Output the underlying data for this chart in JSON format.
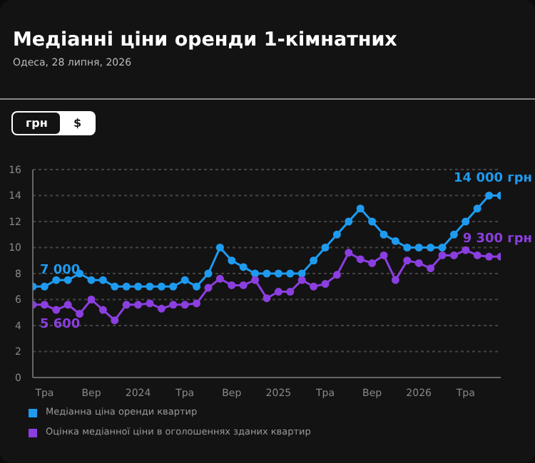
{
  "chart_data": {
    "type": "line",
    "title": "Медіанні ціни оренди 1-кімнатних",
    "subtitle": "Одеса, 28 липня, 2026",
    "annotations": [
      "грн",
      "$",
      {
        "text": "7 000",
        "y": 7.0
      },
      {
        "text": "5 600",
        "y": 5.6
      },
      {
        "text": "14 000 грн",
        "y": 14.0
      },
      {
        "text": "9 300 грн",
        "y": 9.3
      }
    ],
    "categories": [
      null,
      "Тра",
      null,
      null,
      null,
      "Вер",
      null,
      null,
      null,
      "2024",
      null,
      null,
      null,
      "Тра",
      null,
      null,
      null,
      "Вер",
      null,
      null,
      null,
      "2025",
      null,
      null,
      null,
      "Тра",
      null,
      null,
      null,
      "Вер",
      null,
      null,
      null,
      "2026",
      null,
      null,
      null,
      "Тра",
      null,
      null,
      null
    ],
    "series": [
      {
        "name": "Медіанна ціна оренди квартир",
        "color": "#1e9bf0",
        "values": [
          7.0,
          7.0,
          7.5,
          7.5,
          8.0,
          7.5,
          7.5,
          7.0,
          7.0,
          7.0,
          7.0,
          7.0,
          7.0,
          7.5,
          7.0,
          8.0,
          10.0,
          9.0,
          8.5,
          8.0,
          8.0,
          8.0,
          8.0,
          8.0,
          9.0,
          10.0,
          11.0,
          12.0,
          13.0,
          12.0,
          11.0,
          10.5,
          10.0,
          10.0,
          10.0,
          10.0,
          11.0,
          12.0,
          13.0,
          14.0,
          14.0
        ]
      },
      {
        "name": "Оцінка медіанної ціни в оголошеннях зданих квартир",
        "color": "#8b3fe0",
        "values": [
          5.6,
          5.6,
          5.2,
          5.6,
          4.9,
          6.0,
          5.2,
          4.4,
          5.6,
          5.6,
          5.7,
          5.3,
          5.6,
          5.6,
          5.7,
          6.9,
          7.6,
          7.1,
          7.1,
          7.5,
          6.1,
          6.6,
          6.6,
          7.5,
          7.0,
          7.2,
          7.9,
          9.6,
          9.1,
          8.8,
          9.4,
          7.5,
          9.0,
          8.8,
          8.4,
          9.4,
          9.4,
          9.8,
          9.4,
          9.3,
          9.3
        ]
      }
    ],
    "ylim": [
      0,
      16
    ],
    "yticks": [
      0,
      2,
      4,
      6,
      8,
      10,
      12,
      14,
      16
    ],
    "grid": "y",
    "legend": "bottom",
    "marker": "circle",
    "line_style": "solid"
  }
}
